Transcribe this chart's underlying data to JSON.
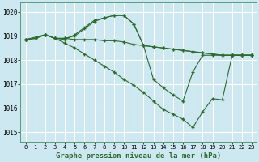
{
  "bg_color": "#cde8f0",
  "grid_color": "#b8dce8",
  "line_color": "#2d6a2d",
  "marker": "+",
  "title": "Graphe pression niveau de la mer (hPa)",
  "xlim": [
    -0.5,
    23.5
  ],
  "ylim": [
    1014.6,
    1020.4
  ],
  "yticks": [
    1015,
    1016,
    1017,
    1018,
    1019,
    1020
  ],
  "xticks": [
    0,
    1,
    2,
    3,
    4,
    5,
    6,
    7,
    8,
    9,
    10,
    11,
    12,
    13,
    14,
    15,
    16,
    17,
    18,
    19,
    20,
    21,
    22,
    23
  ],
  "series": [
    {
      "x": [
        0,
        1,
        2,
        3,
        4,
        5,
        6,
        7,
        8,
        9,
        10,
        11,
        12,
        13,
        14,
        15,
        16,
        17,
        18,
        19,
        20,
        21,
        22,
        23
      ],
      "y": [
        1018.85,
        1018.9,
        1019.05,
        1018.9,
        1018.9,
        1018.85,
        1018.85,
        1018.85,
        1018.8,
        1018.8,
        1018.75,
        1018.65,
        1018.6,
        1018.55,
        1018.5,
        1018.45,
        1018.4,
        1018.35,
        1018.3,
        1018.25,
        1018.2,
        1018.2,
        1018.2,
        1018.2
      ]
    },
    {
      "x": [
        0,
        1,
        2,
        3,
        4,
        5,
        6,
        7,
        8,
        9,
        10,
        11,
        12,
        13,
        14,
        15,
        16,
        17,
        18,
        19,
        20,
        21,
        22,
        23
      ],
      "y": [
        1018.85,
        1018.9,
        1019.05,
        1018.9,
        1018.9,
        1019.0,
        1019.3,
        1019.6,
        1019.75,
        1019.85,
        1019.85,
        1019.5,
        1018.6,
        1018.55,
        1018.5,
        1018.45,
        1018.4,
        1018.35,
        1018.3,
        1018.25,
        1018.2,
        1018.2,
        1018.2,
        1018.2
      ]
    },
    {
      "x": [
        0,
        1,
        2,
        3,
        4,
        5,
        6,
        7,
        8,
        9,
        10,
        11,
        12,
        13,
        14,
        15,
        16,
        17,
        18,
        19,
        20,
        21,
        22,
        23
      ],
      "y": [
        1018.85,
        1018.9,
        1019.05,
        1018.9,
        1018.85,
        1019.05,
        1019.35,
        1019.65,
        1019.75,
        1019.85,
        1019.85,
        1019.5,
        1018.6,
        1017.2,
        1016.85,
        1016.55,
        1016.3,
        1017.5,
        1018.2,
        1018.2,
        1018.2,
        1018.2,
        1018.2,
        1018.2
      ]
    },
    {
      "x": [
        0,
        2,
        3,
        4,
        5,
        6,
        7,
        8,
        9,
        10,
        11,
        12,
        13,
        14,
        15,
        16,
        17,
        18,
        19,
        20,
        21,
        22,
        23
      ],
      "y": [
        1018.85,
        1019.05,
        1018.9,
        1018.7,
        1018.5,
        1018.25,
        1018.0,
        1017.75,
        1017.5,
        1017.2,
        1016.95,
        1016.65,
        1016.3,
        1015.95,
        1015.75,
        1015.55,
        1015.2,
        1015.85,
        1016.4,
        1016.35,
        1018.2,
        1018.2,
        1018.2
      ]
    }
  ]
}
